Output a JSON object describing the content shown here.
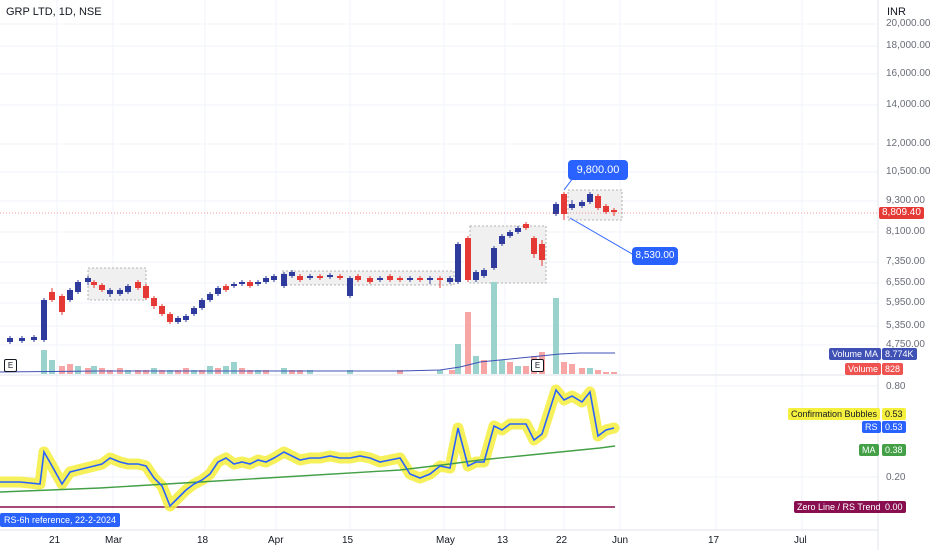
{
  "header": {
    "symbol": "GRP LTD, 1D, NSE",
    "currency": "INR"
  },
  "price_axis": [
    "20,000.00",
    "18,000.00",
    "16,000.00",
    "14,000.00",
    "12,000.00",
    "10,500.00",
    "9,300.00",
    "8,100.00",
    "7,350.00",
    "6,550.00",
    "5,950.00",
    "5,350.00",
    "4,750.00"
  ],
  "price_labels": {
    "last": "8,809.40",
    "high_callout": "9,800.00",
    "low_callout": "8,530.00"
  },
  "volume_labels": {
    "ma_name": "Volume MA",
    "ma_value": "8.774K",
    "vol_name": "Volume",
    "vol_value": "828"
  },
  "indicator_axis": [
    "0.80",
    "0.20"
  ],
  "indicator_labels": [
    {
      "name": "Confirmation Bubbles",
      "value": "0.53"
    },
    {
      "name": "RS",
      "value": "0.53"
    },
    {
      "name": "MA",
      "value": "0.38"
    },
    {
      "name": "Zero Line / RS Trend",
      "value": "0.00"
    }
  ],
  "rs_reference": "RS-6h reference, 22-2-2024",
  "time_axis": [
    "21",
    "Mar",
    "18",
    "Apr",
    "15",
    "May",
    "13",
    "22",
    "Jun",
    "17",
    "Jul"
  ],
  "earnings_marker": "E",
  "colors": {
    "up": "#2e3a9c",
    "down": "#e53935",
    "rs": "#2962ff",
    "bubble": "#f5ef3d",
    "ma": "#43a047",
    "zero": "#880e4f",
    "volma": "#3f51b5"
  }
}
